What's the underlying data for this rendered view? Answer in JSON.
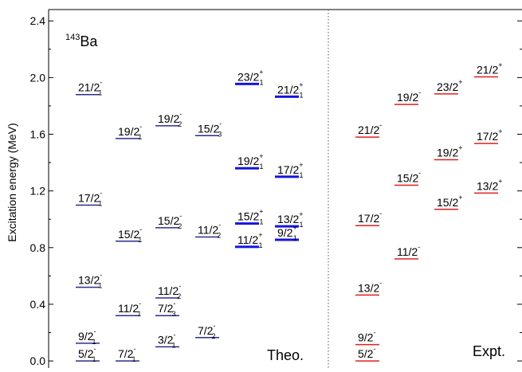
{
  "chart_data": {
    "type": "level-scheme",
    "ylabel": "Excitation energy (MeV)",
    "ylim": [
      -0.05,
      2.48
    ],
    "yticks": [
      "0.0",
      "0.4",
      "0.8",
      "1.2",
      "1.6",
      "2.0",
      "2.4"
    ],
    "ytick_values": [
      0.0,
      0.4,
      0.8,
      1.2,
      1.6,
      2.0,
      2.4
    ],
    "nucleus": {
      "mass": "143",
      "symbol": "Ba"
    },
    "panel_labels": {
      "theory": "Theo.",
      "experiment": "Expt."
    },
    "colors": {
      "negative_parity": "#2b2b8c",
      "positive_parity": "#1414e0",
      "experiment": "#e01f1f"
    },
    "theory_levels": [
      {
        "column": 1,
        "spin": "5/2",
        "parity": "-",
        "index": "1",
        "energy": 0.0,
        "parity_group": "negative"
      },
      {
        "column": 1,
        "spin": "9/2",
        "parity": "-",
        "index": "1",
        "energy": 0.125,
        "parity_group": "negative"
      },
      {
        "column": 1,
        "spin": "13/2",
        "parity": "-",
        "index": "1",
        "energy": 0.52,
        "parity_group": "negative"
      },
      {
        "column": 1,
        "spin": "17/2",
        "parity": "-",
        "index": "1",
        "energy": 1.1,
        "parity_group": "negative"
      },
      {
        "column": 1,
        "spin": "21/2",
        "parity": "-",
        "index": "1",
        "energy": 1.88,
        "parity_group": "negative"
      },
      {
        "column": 2,
        "spin": "7/2",
        "parity": "-",
        "index": "1",
        "energy": 0.0,
        "parity_group": "negative"
      },
      {
        "column": 2,
        "spin": "11/2",
        "parity": "-",
        "index": "1",
        "energy": 0.32,
        "parity_group": "negative"
      },
      {
        "column": 2,
        "spin": "15/2",
        "parity": "-",
        "index": "1",
        "energy": 0.845,
        "parity_group": "negative"
      },
      {
        "column": 2,
        "spin": "19/2",
        "parity": "-",
        "index": "1",
        "energy": 1.57,
        "parity_group": "negative"
      },
      {
        "column": 3,
        "spin": "3/2",
        "parity": "-",
        "index": "1",
        "energy": 0.1,
        "parity_group": "negative"
      },
      {
        "column": 3,
        "spin": "7/2",
        "parity": "-",
        "index": "3",
        "energy": 0.32,
        "parity_group": "negative"
      },
      {
        "column": 3,
        "spin": "11/2",
        "parity": "-",
        "index": "2",
        "energy": 0.445,
        "parity_group": "negative"
      },
      {
        "column": 3,
        "spin": "15/2",
        "parity": "-",
        "index": "2",
        "energy": 0.94,
        "parity_group": "negative"
      },
      {
        "column": 3,
        "spin": "19/2",
        "parity": "-",
        "index": "2",
        "energy": 1.66,
        "parity_group": "negative"
      },
      {
        "column": 4,
        "spin": "7/2",
        "parity": "-",
        "index": "2",
        "energy": 0.165,
        "parity_group": "negative"
      },
      {
        "column": 4,
        "spin": "11/2",
        "parity": "-",
        "index": "2",
        "energy": 0.875,
        "parity_group": "negative"
      },
      {
        "column": 4,
        "spin": "15/2",
        "parity": "-",
        "index": "3",
        "energy": 1.59,
        "parity_group": "negative"
      },
      {
        "column": 5,
        "spin": "11/2",
        "parity": "+",
        "index": "1",
        "energy": 0.805,
        "parity_group": "positive"
      },
      {
        "column": 5,
        "spin": "15/2",
        "parity": "+",
        "index": "1",
        "energy": 0.97,
        "parity_group": "positive"
      },
      {
        "column": 5,
        "spin": "19/2",
        "parity": "+",
        "index": "1",
        "energy": 1.36,
        "parity_group": "positive"
      },
      {
        "column": 5,
        "spin": "23/2",
        "parity": "+",
        "index": "1",
        "energy": 1.955,
        "parity_group": "positive"
      },
      {
        "column": 6,
        "spin": "9/2",
        "parity": "+",
        "index": "1",
        "energy": 0.855,
        "parity_group": "positive"
      },
      {
        "column": 6,
        "spin": "13/2",
        "parity": "+",
        "index": "1",
        "energy": 0.95,
        "parity_group": "positive"
      },
      {
        "column": 6,
        "spin": "17/2",
        "parity": "+",
        "index": "1",
        "energy": 1.3,
        "parity_group": "positive"
      },
      {
        "column": 6,
        "spin": "21/2",
        "parity": "+",
        "index": "1",
        "energy": 1.865,
        "parity_group": "positive"
      }
    ],
    "experiment_levels": [
      {
        "column": 1,
        "spin": "5/2",
        "parity": "-",
        "energy": 0.0
      },
      {
        "column": 1,
        "spin": "9/2",
        "parity": "-",
        "energy": 0.115
      },
      {
        "column": 1,
        "spin": "13/2",
        "parity": "-",
        "energy": 0.465
      },
      {
        "column": 1,
        "spin": "17/2",
        "parity": "-",
        "energy": 0.955
      },
      {
        "column": 1,
        "spin": "21/2",
        "parity": "-",
        "energy": 1.58
      },
      {
        "column": 2,
        "spin": "11/2",
        "parity": "-",
        "energy": 0.72
      },
      {
        "column": 2,
        "spin": "15/2",
        "parity": "-",
        "energy": 1.24
      },
      {
        "column": 2,
        "spin": "19/2",
        "parity": "-",
        "energy": 1.81
      },
      {
        "column": 3,
        "spin": "15/2",
        "parity": "+",
        "energy": 1.07
      },
      {
        "column": 3,
        "spin": "19/2",
        "parity": "+",
        "energy": 1.42
      },
      {
        "column": 3,
        "spin": "23/2",
        "parity": "+",
        "energy": 1.885
      },
      {
        "column": 4,
        "spin": "13/2",
        "parity": "+",
        "energy": 1.185
      },
      {
        "column": 4,
        "spin": "17/2",
        "parity": "+",
        "energy": 1.535
      },
      {
        "column": 4,
        "spin": "21/2",
        "parity": "+",
        "energy": 2.005
      }
    ]
  }
}
